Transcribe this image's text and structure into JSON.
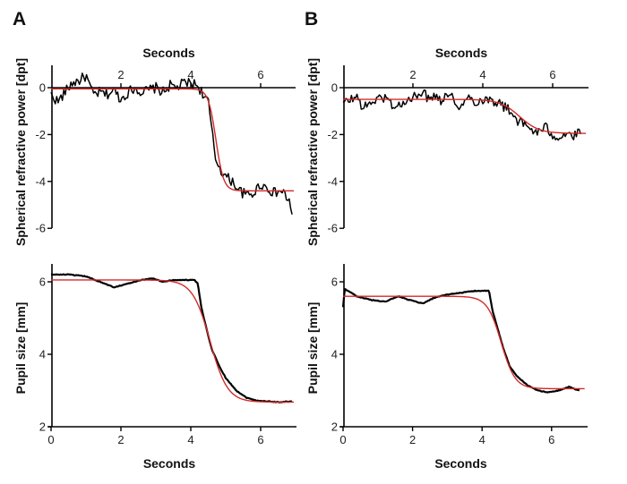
{
  "figure": {
    "panel_labels": [
      "A",
      "B"
    ]
  },
  "colors": {
    "measured": "#000000",
    "fit": "#d32a2a"
  },
  "chart_data": [
    {
      "id": "A-refraction",
      "panel": "A",
      "type": "line",
      "xlabel": "Seconds",
      "xlabel_position": "top",
      "ylabel": "Spherical refractive power [dpt]",
      "xlim": [
        0,
        7
      ],
      "ylim": [
        -6,
        1
      ],
      "xticks": [
        2,
        4,
        6
      ],
      "xtick_labels": [
        "2",
        "4",
        "6"
      ],
      "yticks": [
        0,
        -2,
        -4,
        -6
      ],
      "ytick_labels": [
        "0",
        "-2",
        "-4",
        "-6"
      ],
      "grid": false,
      "series": [
        {
          "name": "measured",
          "style": "noisy",
          "x": [
            0,
            0.2,
            0.4,
            0.6,
            0.8,
            1.0,
            1.2,
            1.4,
            1.6,
            1.8,
            2.0,
            2.2,
            2.4,
            2.6,
            2.8,
            3.0,
            3.2,
            3.4,
            3.6,
            3.8,
            4.0,
            4.2,
            4.4,
            4.5,
            4.6,
            4.7,
            4.8,
            4.9,
            5.0,
            5.2,
            5.4,
            5.6,
            5.8,
            6.0,
            6.2,
            6.4,
            6.6,
            6.8,
            6.9
          ],
          "y": [
            -0.3,
            -0.6,
            -0.2,
            0.2,
            0.3,
            0.5,
            -0.3,
            -0.2,
            -0.3,
            -0.1,
            -0.5,
            -0.2,
            0.0,
            -0.2,
            -0.1,
            0.0,
            -0.2,
            0.1,
            0.0,
            0.2,
            0.2,
            0.1,
            -0.4,
            -0.6,
            -1.8,
            -3.0,
            -3.3,
            -3.6,
            -3.8,
            -4.0,
            -4.4,
            -4.6,
            -4.5,
            -4.1,
            -4.3,
            -4.5,
            -4.4,
            -4.8,
            -5.3
          ]
        },
        {
          "name": "fit",
          "model": "sigmoid",
          "start": -0.05,
          "end": -4.4,
          "midpoint_s": 4.72,
          "width_s": 0.11
        }
      ]
    },
    {
      "id": "B-refraction",
      "panel": "B",
      "type": "line",
      "xlabel": "Seconds",
      "xlabel_position": "top",
      "ylabel": "Spherical refractive power [dpt]",
      "xlim": [
        0,
        7
      ],
      "ylim": [
        -6,
        1
      ],
      "xticks": [
        2,
        4,
        6
      ],
      "xtick_labels": [
        "2",
        "4",
        "6"
      ],
      "yticks": [
        0,
        -2,
        -4,
        -6
      ],
      "ytick_labels": [
        "0",
        "-2",
        "-4",
        "-6"
      ],
      "grid": false,
      "series": [
        {
          "name": "measured",
          "style": "noisy",
          "x": [
            0,
            0.2,
            0.4,
            0.6,
            0.8,
            1.0,
            1.2,
            1.4,
            1.6,
            1.8,
            2.0,
            2.2,
            2.4,
            2.6,
            2.8,
            3.0,
            3.2,
            3.4,
            3.6,
            3.8,
            4.0,
            4.2,
            4.4,
            4.6,
            4.8,
            5.0,
            5.2,
            5.4,
            5.6,
            5.8,
            6.0,
            6.2,
            6.4,
            6.6,
            6.8
          ],
          "y": [
            -0.7,
            -0.5,
            -0.4,
            -0.9,
            -0.6,
            -0.5,
            -0.4,
            -0.7,
            -0.8,
            -0.6,
            -0.5,
            -0.1,
            -0.4,
            -0.3,
            -0.5,
            -0.2,
            -0.6,
            -0.8,
            -0.4,
            -0.6,
            -0.5,
            -0.5,
            -0.6,
            -0.8,
            -1.0,
            -1.4,
            -1.6,
            -1.8,
            -1.9,
            -1.7,
            -2.0,
            -2.1,
            -1.9,
            -2.1,
            -1.9
          ]
        },
        {
          "name": "fit",
          "model": "sigmoid",
          "start": -0.5,
          "end": -1.95,
          "midpoint_s": 5.05,
          "width_s": 0.28
        }
      ]
    },
    {
      "id": "A-pupil",
      "panel": "A",
      "type": "line",
      "xlabel": "Seconds",
      "xlabel_position": "bottom",
      "ylabel": "Pupil size [mm]",
      "xlim": [
        0,
        7
      ],
      "ylim": [
        2,
        6.5
      ],
      "xticks": [
        0,
        2,
        4,
        6
      ],
      "xtick_labels": [
        "0",
        "2",
        "4",
        "6"
      ],
      "yticks": [
        2,
        4,
        6
      ],
      "ytick_labels": [
        "2",
        "4",
        "6"
      ],
      "grid": false,
      "series": [
        {
          "name": "measured",
          "style": "smooth",
          "x": [
            0,
            0.5,
            1.0,
            1.4,
            1.8,
            2.2,
            2.6,
            2.9,
            3.2,
            3.5,
            3.8,
            4.1,
            4.2,
            4.3,
            4.45,
            4.6,
            4.8,
            5.0,
            5.3,
            5.6,
            5.9,
            6.2,
            6.5,
            6.9
          ],
          "y": [
            6.2,
            6.2,
            6.15,
            6.0,
            5.85,
            5.95,
            6.05,
            6.1,
            6.0,
            6.05,
            6.05,
            6.05,
            5.95,
            5.3,
            4.7,
            4.15,
            3.7,
            3.35,
            3.0,
            2.8,
            2.72,
            2.7,
            2.68,
            2.7
          ]
        },
        {
          "name": "fit",
          "model": "sigmoid",
          "start": 6.05,
          "end": 2.68,
          "midpoint_s": 4.55,
          "width_s": 0.25
        }
      ]
    },
    {
      "id": "B-pupil",
      "panel": "B",
      "type": "line",
      "xlabel": "Seconds",
      "xlabel_position": "bottom",
      "ylabel": "Pupil size [mm]",
      "xlim": [
        0,
        7
      ],
      "ylim": [
        2,
        6.5
      ],
      "xticks": [
        0,
        2,
        4,
        6
      ],
      "xtick_labels": [
        "0",
        "2",
        "4",
        "6"
      ],
      "yticks": [
        2,
        4,
        6
      ],
      "ytick_labels": [
        "2",
        "4",
        "6"
      ],
      "grid": false,
      "series": [
        {
          "name": "measured",
          "style": "smooth",
          "x": [
            0,
            0.05,
            0.15,
            0.4,
            0.8,
            1.2,
            1.6,
            1.9,
            2.3,
            2.6,
            3.0,
            3.4,
            3.8,
            4.0,
            4.2,
            4.3,
            4.45,
            4.6,
            4.8,
            5.0,
            5.3,
            5.6,
            5.9,
            6.2,
            6.5,
            6.8
          ],
          "y": [
            5.3,
            5.8,
            5.75,
            5.6,
            5.5,
            5.45,
            5.6,
            5.5,
            5.4,
            5.55,
            5.65,
            5.7,
            5.75,
            5.75,
            5.75,
            5.2,
            4.7,
            4.2,
            3.65,
            3.4,
            3.15,
            3.0,
            2.95,
            3.0,
            3.1,
            3.0
          ]
        },
        {
          "name": "fit",
          "model": "sigmoid",
          "start": 5.6,
          "end": 3.05,
          "midpoint_s": 4.55,
          "width_s": 0.2
        }
      ]
    }
  ]
}
